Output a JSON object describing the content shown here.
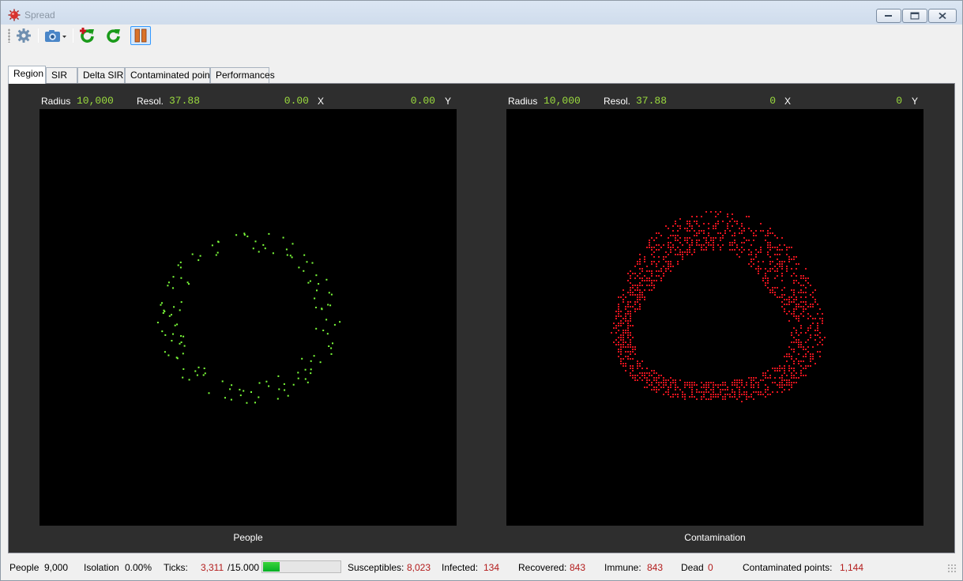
{
  "window": {
    "title": "Spread",
    "accent": "#d8322e"
  },
  "toolbar": {
    "buttons": [
      {
        "icon": "gear-icon"
      },
      {
        "icon": "camera-dropdown-icon"
      },
      {
        "icon": "reload-add-icon"
      },
      {
        "icon": "reload-icon"
      },
      {
        "icon": "pause-icon"
      }
    ]
  },
  "tabs": [
    "Region",
    "SIR",
    "Delta SIR",
    "Contaminated points",
    "Performances"
  ],
  "active_tab": "Region",
  "people_panel": {
    "radius_label": "Radius",
    "radius": "10,000",
    "resol_label": "Resol.",
    "resol": "37.88",
    "x_value": "0.00",
    "x_label": "X",
    "y_value": "0.00",
    "y_label": "Y",
    "caption": "People",
    "dot_color": "#7cff3a",
    "ring_center": [
      0,
      0
    ],
    "ring_radius": 9.5,
    "dot_count": 134
  },
  "contamination_panel": {
    "radius_label": "Radius",
    "radius": "10,000",
    "resol_label": "Resol.",
    "resol": "37.88",
    "x_value": "0",
    "x_label": "X",
    "y_value": "0",
    "y_label": "Y",
    "caption": "Contamination",
    "cell_color": "#e0141e",
    "cell_count": 1144
  },
  "status": {
    "people_label": "People",
    "people": "9,000",
    "isolation_label": "Isolation",
    "isolation": "0.00%",
    "ticks_label": "Ticks:",
    "ticks": "3,311",
    "ticks_total": "/15.000",
    "ticks_progress": 0.2207,
    "susceptibles_label": "Susceptibles:",
    "susceptibles": "8,023",
    "infected_label": "Infected:",
    "infected": "134",
    "recovered_label": "Recovered:",
    "recovered": "843",
    "immune_label": "Immune:",
    "immune": "843",
    "dead_label": "Dead",
    "dead": "0",
    "contaminated_label": "Contaminated points:",
    "contaminated": "1,144"
  }
}
